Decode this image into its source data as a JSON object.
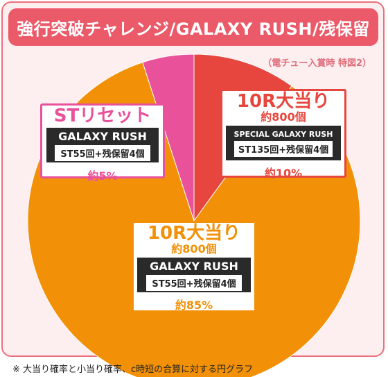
{
  "header": {
    "title": "強行突破チャレンジ/GALAXY RUSH/残保留"
  },
  "note": "（電チュー入賞時 特図2）",
  "footnote": "※ 大当り確率と小当り確率、c時短の合算に対する円グラフ",
  "colors": {
    "red": "#e6463d",
    "orange": "#f29108",
    "pink": "#e9519a",
    "frame": "#ec6f7b"
  },
  "chart_data": {
    "type": "pie",
    "series": [
      {
        "name": "10R大当り 約800個 SPECIAL GALAXY RUSH",
        "value": 10,
        "color": "#e6463d"
      },
      {
        "name": "10R大当り 約800個 GALAXY RUSH",
        "value": 85,
        "color": "#f29108"
      },
      {
        "name": "STリセット GALAXY RUSH",
        "value": 5,
        "color": "#e9519a"
      }
    ]
  },
  "labels": {
    "red": {
      "head": "10R大当り",
      "sub": "約800個",
      "mode": "SPECIAL GALAXY RUSH",
      "detail": "ST135回+残保留4個",
      "pct": "約10%"
    },
    "orange": {
      "head": "10R大当り",
      "sub": "約800個",
      "mode": "GALAXY RUSH",
      "detail": "ST55回+残保留4個",
      "pct": "約85%"
    },
    "pink": {
      "head": "STリセット",
      "mode": "GALAXY RUSH",
      "detail": "ST55回+残保留4個",
      "pct": "約5%"
    }
  }
}
